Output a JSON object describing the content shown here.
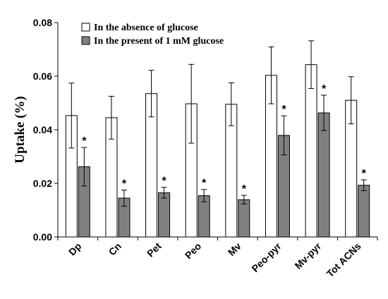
{
  "chart_data": {
    "type": "bar",
    "ylabel": "Uptake (%)",
    "ylim": [
      0,
      0.08
    ],
    "yticks": [
      "0.00",
      "0.02",
      "0.04",
      "0.06",
      "0.08"
    ],
    "grid": false,
    "legend_position": "top-left",
    "categories": [
      "Dp",
      "Cn",
      "Pet",
      "Peo",
      "Mv",
      "Peo-pyr",
      "Mv-pyr",
      "Tot ACNs"
    ],
    "series": [
      {
        "name": "In the absence of glucose",
        "color": "#ffffff",
        "values": [
          0.0453,
          0.0445,
          0.0535,
          0.0497,
          0.0495,
          0.0603,
          0.0643,
          0.051
        ],
        "errors": [
          0.0121,
          0.008,
          0.0087,
          0.0147,
          0.008,
          0.0106,
          0.0089,
          0.0088
        ]
      },
      {
        "name": "In the present of 1 mM glucose",
        "color": "#808080",
        "values": [
          0.0262,
          0.0145,
          0.0165,
          0.0154,
          0.0139,
          0.0379,
          0.0463,
          0.0193
        ],
        "errors": [
          0.0072,
          0.003,
          0.002,
          0.0023,
          0.0016,
          0.0073,
          0.0066,
          0.002
        ],
        "significance_marks": [
          "*",
          "*",
          "*",
          "*",
          "*",
          "*",
          "*",
          "*"
        ]
      }
    ]
  }
}
